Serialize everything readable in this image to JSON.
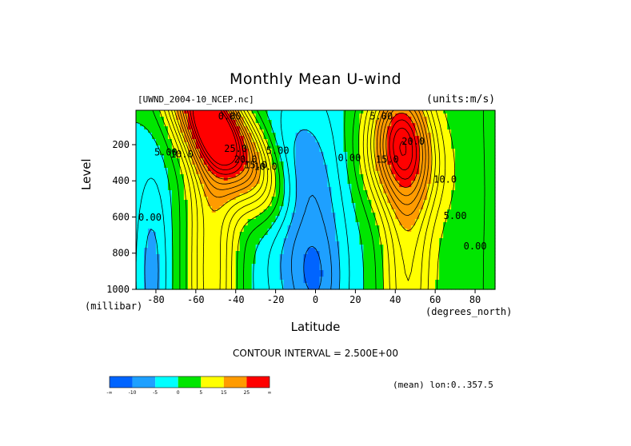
{
  "chart_data": {
    "type": "heatmap",
    "title": "Monthly Mean U-wind",
    "dataset": "[UWND_2004-10_NCEP.nc]",
    "units": "(units:m/s)",
    "xlabel": "Latitude",
    "x_units": "(degrees_north)",
    "ylabel": "Level",
    "y_units": "(millibar)",
    "xlim": [
      -90,
      90
    ],
    "ylim": [
      1000,
      10
    ],
    "x_ticks": [
      "-80",
      "-60",
      "-40",
      "-20",
      "0",
      "20",
      "40",
      "60",
      "80"
    ],
    "x_tick_values": [
      -80,
      -60,
      -40,
      -20,
      0,
      20,
      40,
      60,
      80
    ],
    "y_ticks": [
      "200",
      "400",
      "600",
      "800",
      "1000"
    ],
    "y_tick_values": [
      200,
      400,
      600,
      800,
      1000
    ],
    "contour_interval": "CONTOUR INTERVAL = 2.500E+00",
    "note": "(mean) lon:0..357.5",
    "legend": {
      "labels": [
        "-∞",
        "-10",
        "-5",
        "0",
        "5",
        "15",
        "25",
        "∞"
      ],
      "colors": [
        "#0064ff",
        "#1ea0ff",
        "#00ffff",
        "#00e600",
        "#ffff00",
        "#ff9b00",
        "#ff0000"
      ]
    },
    "contour_labels": [
      {
        "text": "5.00",
        "lat": -75,
        "p": 260
      },
      {
        "text": "10.0",
        "lat": -67,
        "p": 270
      },
      {
        "text": "0.00",
        "lat": -83,
        "p": 620
      },
      {
        "text": "25.0",
        "lat": -40,
        "p": 240
      },
      {
        "text": "20.0",
        "lat": -35,
        "p": 300
      },
      {
        "text": "15.0",
        "lat": -30,
        "p": 330
      },
      {
        "text": "10.0",
        "lat": -25,
        "p": 340
      },
      {
        "text": "5.00",
        "lat": -19,
        "p": 250
      },
      {
        "text": "0.00",
        "lat": -43,
        "p": 60
      },
      {
        "text": "0.00",
        "lat": 17,
        "p": 290
      },
      {
        "text": "5.00",
        "lat": 33,
        "p": 60
      },
      {
        "text": "15.0",
        "lat": 36,
        "p": 300
      },
      {
        "text": "20.0",
        "lat": 49,
        "p": 200
      },
      {
        "text": "10.0",
        "lat": 65,
        "p": 410
      },
      {
        "text": "5.00",
        "lat": 70,
        "p": 610
      },
      {
        "text": "0.00",
        "lat": 80,
        "p": 780
      }
    ]
  }
}
